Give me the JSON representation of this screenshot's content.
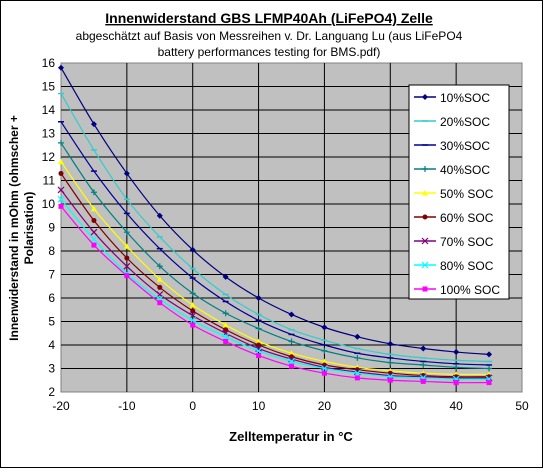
{
  "chart_data": {
    "type": "line",
    "title": "Innenwiderstand GBS LFMP40Ah (LiFePO4) Zelle",
    "subtitle_line1": "abgeschätzt auf Basis von Messreihen v. Dr. Languang Lu (aus LiFePO4",
    "subtitle_line2": "battery performances testing for BMS.pdf)",
    "xlabel": "Zelltemperatur in °C",
    "ylabel_line1": "Innenwiderstand in mOhm (ohmscher +",
    "ylabel_line2": "Polarisation)",
    "xlim": [
      -20,
      50
    ],
    "ylim": [
      2,
      16
    ],
    "xticks": [
      -20,
      -10,
      0,
      10,
      20,
      30,
      40,
      50
    ],
    "yticks": [
      2,
      3,
      4,
      5,
      6,
      7,
      8,
      9,
      10,
      11,
      12,
      13,
      14,
      15,
      16
    ],
    "grid": true,
    "plot_background": "#c0c0c0",
    "legend_position": "right",
    "x": [
      -20,
      -15,
      -10,
      -5,
      0,
      5,
      10,
      15,
      20,
      25,
      30,
      35,
      40,
      45
    ],
    "series": [
      {
        "name": "10%SOC",
        "color": "#000080",
        "marker": "diamond",
        "values": [
          15.8,
          13.4,
          11.3,
          9.5,
          8.05,
          6.9,
          6.0,
          5.3,
          4.75,
          4.35,
          4.05,
          3.85,
          3.7,
          3.6
        ]
      },
      {
        "name": "20%SOC",
        "color": "#33cccc",
        "marker": "dash",
        "values": [
          14.7,
          12.3,
          10.2,
          8.6,
          7.25,
          6.15,
          5.3,
          4.65,
          4.2,
          3.85,
          3.6,
          3.45,
          3.35,
          3.3
        ]
      },
      {
        "name": "30%SOC",
        "color": "#000099",
        "marker": "dash",
        "values": [
          13.5,
          11.4,
          9.6,
          8.1,
          6.85,
          5.85,
          5.05,
          4.45,
          4.0,
          3.65,
          3.45,
          3.3,
          3.2,
          3.15
        ]
      },
      {
        "name": "40%SOC",
        "color": "#008080",
        "marker": "plus",
        "values": [
          12.6,
          10.5,
          8.8,
          7.35,
          6.2,
          5.35,
          4.7,
          4.15,
          3.75,
          3.45,
          3.25,
          3.15,
          3.05,
          3.0
        ]
      },
      {
        "name": "50% SOC",
        "color": "#ffff00",
        "marker": "triangle",
        "values": [
          11.8,
          9.8,
          8.2,
          6.8,
          5.7,
          4.85,
          4.15,
          3.65,
          3.3,
          3.05,
          2.9,
          2.8,
          2.75,
          2.75
        ]
      },
      {
        "name": "60% SOC",
        "color": "#800000",
        "marker": "dot",
        "values": [
          11.3,
          9.3,
          7.7,
          6.45,
          5.45,
          4.65,
          4.0,
          3.5,
          3.15,
          2.95,
          2.8,
          2.7,
          2.65,
          2.65
        ]
      },
      {
        "name": "70% SOC",
        "color": "#800080",
        "marker": "x",
        "values": [
          10.6,
          8.8,
          7.35,
          6.15,
          5.25,
          4.5,
          3.85,
          3.4,
          3.05,
          2.85,
          2.7,
          2.65,
          2.6,
          2.6
        ]
      },
      {
        "name": "80% SOC",
        "color": "#00ffff",
        "marker": "x",
        "values": [
          10.2,
          8.5,
          7.05,
          5.95,
          5.05,
          4.35,
          3.75,
          3.3,
          3.0,
          2.8,
          2.65,
          2.6,
          2.55,
          2.55
        ]
      },
      {
        "name": "100% SOC",
        "color": "#ff00ff",
        "marker": "square",
        "values": [
          9.9,
          8.25,
          6.95,
          5.8,
          4.85,
          4.15,
          3.55,
          3.1,
          2.8,
          2.6,
          2.5,
          2.45,
          2.4,
          2.4
        ]
      }
    ]
  }
}
